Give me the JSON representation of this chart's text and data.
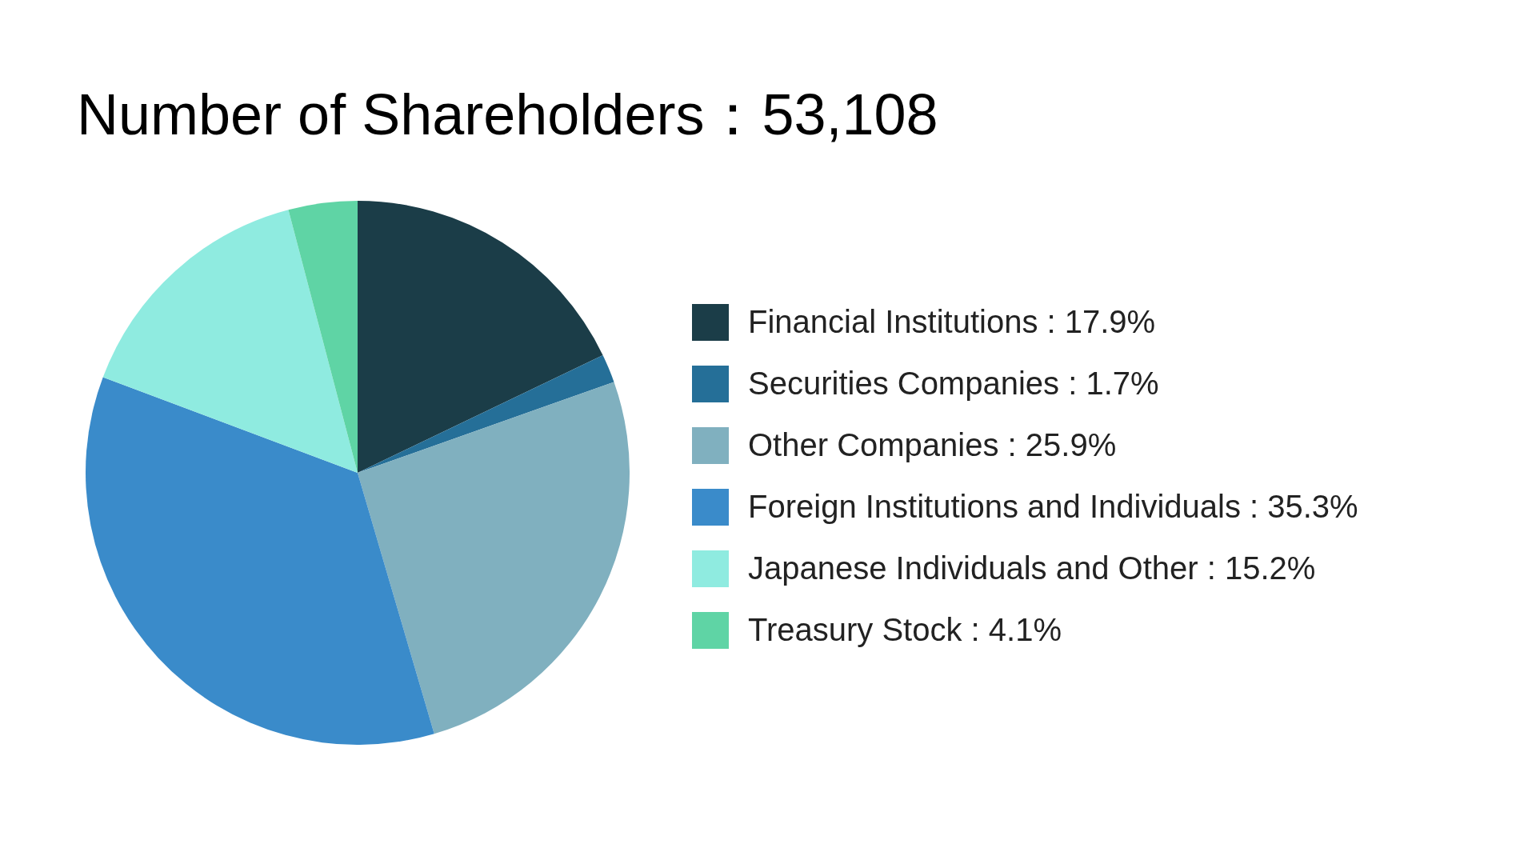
{
  "chart_data": {
    "type": "pie",
    "title": "Number of Shareholders：53,108",
    "categories": [
      "Financial Institutions : 17.9%",
      "Securities Companies : 1.7%",
      "Other Companies : 25.9%",
      "Foreign Institutions and Individuals : 35.3%",
      "Japanese Individuals and Other : 15.2%",
      "Treasury Stock : 4.1%"
    ],
    "values": [
      17.9,
      1.7,
      25.9,
      35.3,
      15.2,
      4.1
    ],
    "colors": [
      "#1b3d48",
      "#256f98",
      "#80b0bf",
      "#3a8bca",
      "#8febe0",
      "#5fd4a5"
    ],
    "legend": "right"
  }
}
